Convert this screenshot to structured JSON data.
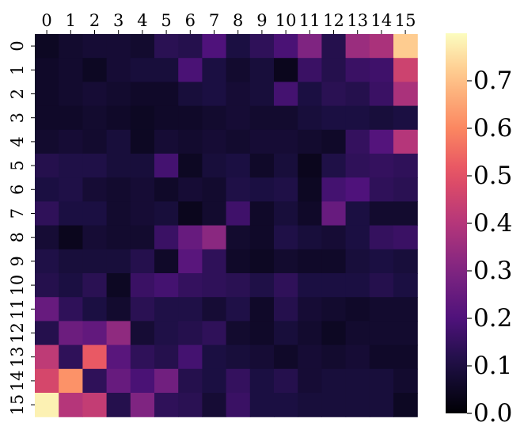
{
  "chart_data": {
    "type": "heatmap",
    "title": "",
    "xlabel": "",
    "ylabel": "",
    "x_categories": [
      "0",
      "1",
      "2",
      "3",
      "4",
      "5",
      "6",
      "7",
      "8",
      "9",
      "10",
      "11",
      "12",
      "13",
      "14",
      "15"
    ],
    "y_categories": [
      "0",
      "1",
      "2",
      "3",
      "4",
      "5",
      "6",
      "7",
      "8",
      "9",
      "10",
      "11",
      "12",
      "13",
      "14",
      "15"
    ],
    "colormap": "magma",
    "vmin": 0.0,
    "vmax": 0.8,
    "colorbar_ticks": [
      {
        "value": 0.0,
        "label": "0.0"
      },
      {
        "value": 0.1,
        "label": "0.1"
      },
      {
        "value": 0.2,
        "label": "0.2"
      },
      {
        "value": 0.3,
        "label": "0.3"
      },
      {
        "value": 0.4,
        "label": "0.4"
      },
      {
        "value": 0.5,
        "label": "0.5"
      },
      {
        "value": 0.6,
        "label": "0.6"
      },
      {
        "value": 0.7,
        "label": "0.7"
      }
    ],
    "values": [
      [
        0.05,
        0.07,
        0.08,
        0.08,
        0.07,
        0.13,
        0.12,
        0.2,
        0.1,
        0.14,
        0.19,
        0.3,
        0.12,
        0.35,
        0.38,
        0.72
      ],
      [
        0.06,
        0.07,
        0.05,
        0.08,
        0.09,
        0.09,
        0.19,
        0.1,
        0.07,
        0.09,
        0.04,
        0.16,
        0.12,
        0.16,
        0.17,
        0.45
      ],
      [
        0.06,
        0.07,
        0.08,
        0.07,
        0.06,
        0.06,
        0.09,
        0.1,
        0.08,
        0.09,
        0.18,
        0.1,
        0.13,
        0.12,
        0.16,
        0.38
      ],
      [
        0.06,
        0.06,
        0.07,
        0.06,
        0.05,
        0.06,
        0.06,
        0.07,
        0.08,
        0.07,
        0.07,
        0.09,
        0.1,
        0.1,
        0.09,
        0.1
      ],
      [
        0.07,
        0.08,
        0.07,
        0.09,
        0.05,
        0.08,
        0.07,
        0.08,
        0.07,
        0.08,
        0.08,
        0.07,
        0.06,
        0.15,
        0.21,
        0.4
      ],
      [
        0.12,
        0.11,
        0.11,
        0.09,
        0.09,
        0.18,
        0.05,
        0.09,
        0.1,
        0.06,
        0.09,
        0.04,
        0.11,
        0.14,
        0.15,
        0.14
      ],
      [
        0.1,
        0.11,
        0.08,
        0.07,
        0.08,
        0.06,
        0.08,
        0.07,
        0.11,
        0.1,
        0.11,
        0.05,
        0.18,
        0.2,
        0.14,
        0.13
      ],
      [
        0.14,
        0.1,
        0.1,
        0.07,
        0.08,
        0.09,
        0.04,
        0.07,
        0.17,
        0.06,
        0.09,
        0.06,
        0.25,
        0.1,
        0.07,
        0.07
      ],
      [
        0.08,
        0.04,
        0.08,
        0.07,
        0.07,
        0.16,
        0.25,
        0.32,
        0.07,
        0.06,
        0.11,
        0.09,
        0.08,
        0.1,
        0.15,
        0.16
      ],
      [
        0.11,
        0.09,
        0.09,
        0.09,
        0.12,
        0.06,
        0.22,
        0.14,
        0.06,
        0.05,
        0.07,
        0.06,
        0.06,
        0.09,
        0.1,
        0.09
      ],
      [
        0.12,
        0.1,
        0.13,
        0.05,
        0.16,
        0.18,
        0.15,
        0.14,
        0.13,
        0.11,
        0.14,
        0.1,
        0.1,
        0.1,
        0.12,
        0.1
      ],
      [
        0.25,
        0.14,
        0.1,
        0.07,
        0.13,
        0.11,
        0.11,
        0.08,
        0.11,
        0.06,
        0.12,
        0.08,
        0.07,
        0.06,
        0.07,
        0.07
      ],
      [
        0.12,
        0.26,
        0.24,
        0.33,
        0.08,
        0.11,
        0.12,
        0.14,
        0.07,
        0.06,
        0.09,
        0.07,
        0.05,
        0.07,
        0.07,
        0.07
      ],
      [
        0.42,
        0.14,
        0.52,
        0.22,
        0.14,
        0.12,
        0.18,
        0.1,
        0.09,
        0.08,
        0.06,
        0.08,
        0.07,
        0.08,
        0.06,
        0.06
      ],
      [
        0.47,
        0.62,
        0.14,
        0.25,
        0.19,
        0.27,
        0.12,
        0.1,
        0.15,
        0.1,
        0.12,
        0.08,
        0.09,
        0.09,
        0.09,
        0.07
      ],
      [
        0.78,
        0.4,
        0.43,
        0.12,
        0.3,
        0.14,
        0.13,
        0.08,
        0.16,
        0.1,
        0.1,
        0.09,
        0.09,
        0.09,
        0.09,
        0.05
      ]
    ]
  }
}
